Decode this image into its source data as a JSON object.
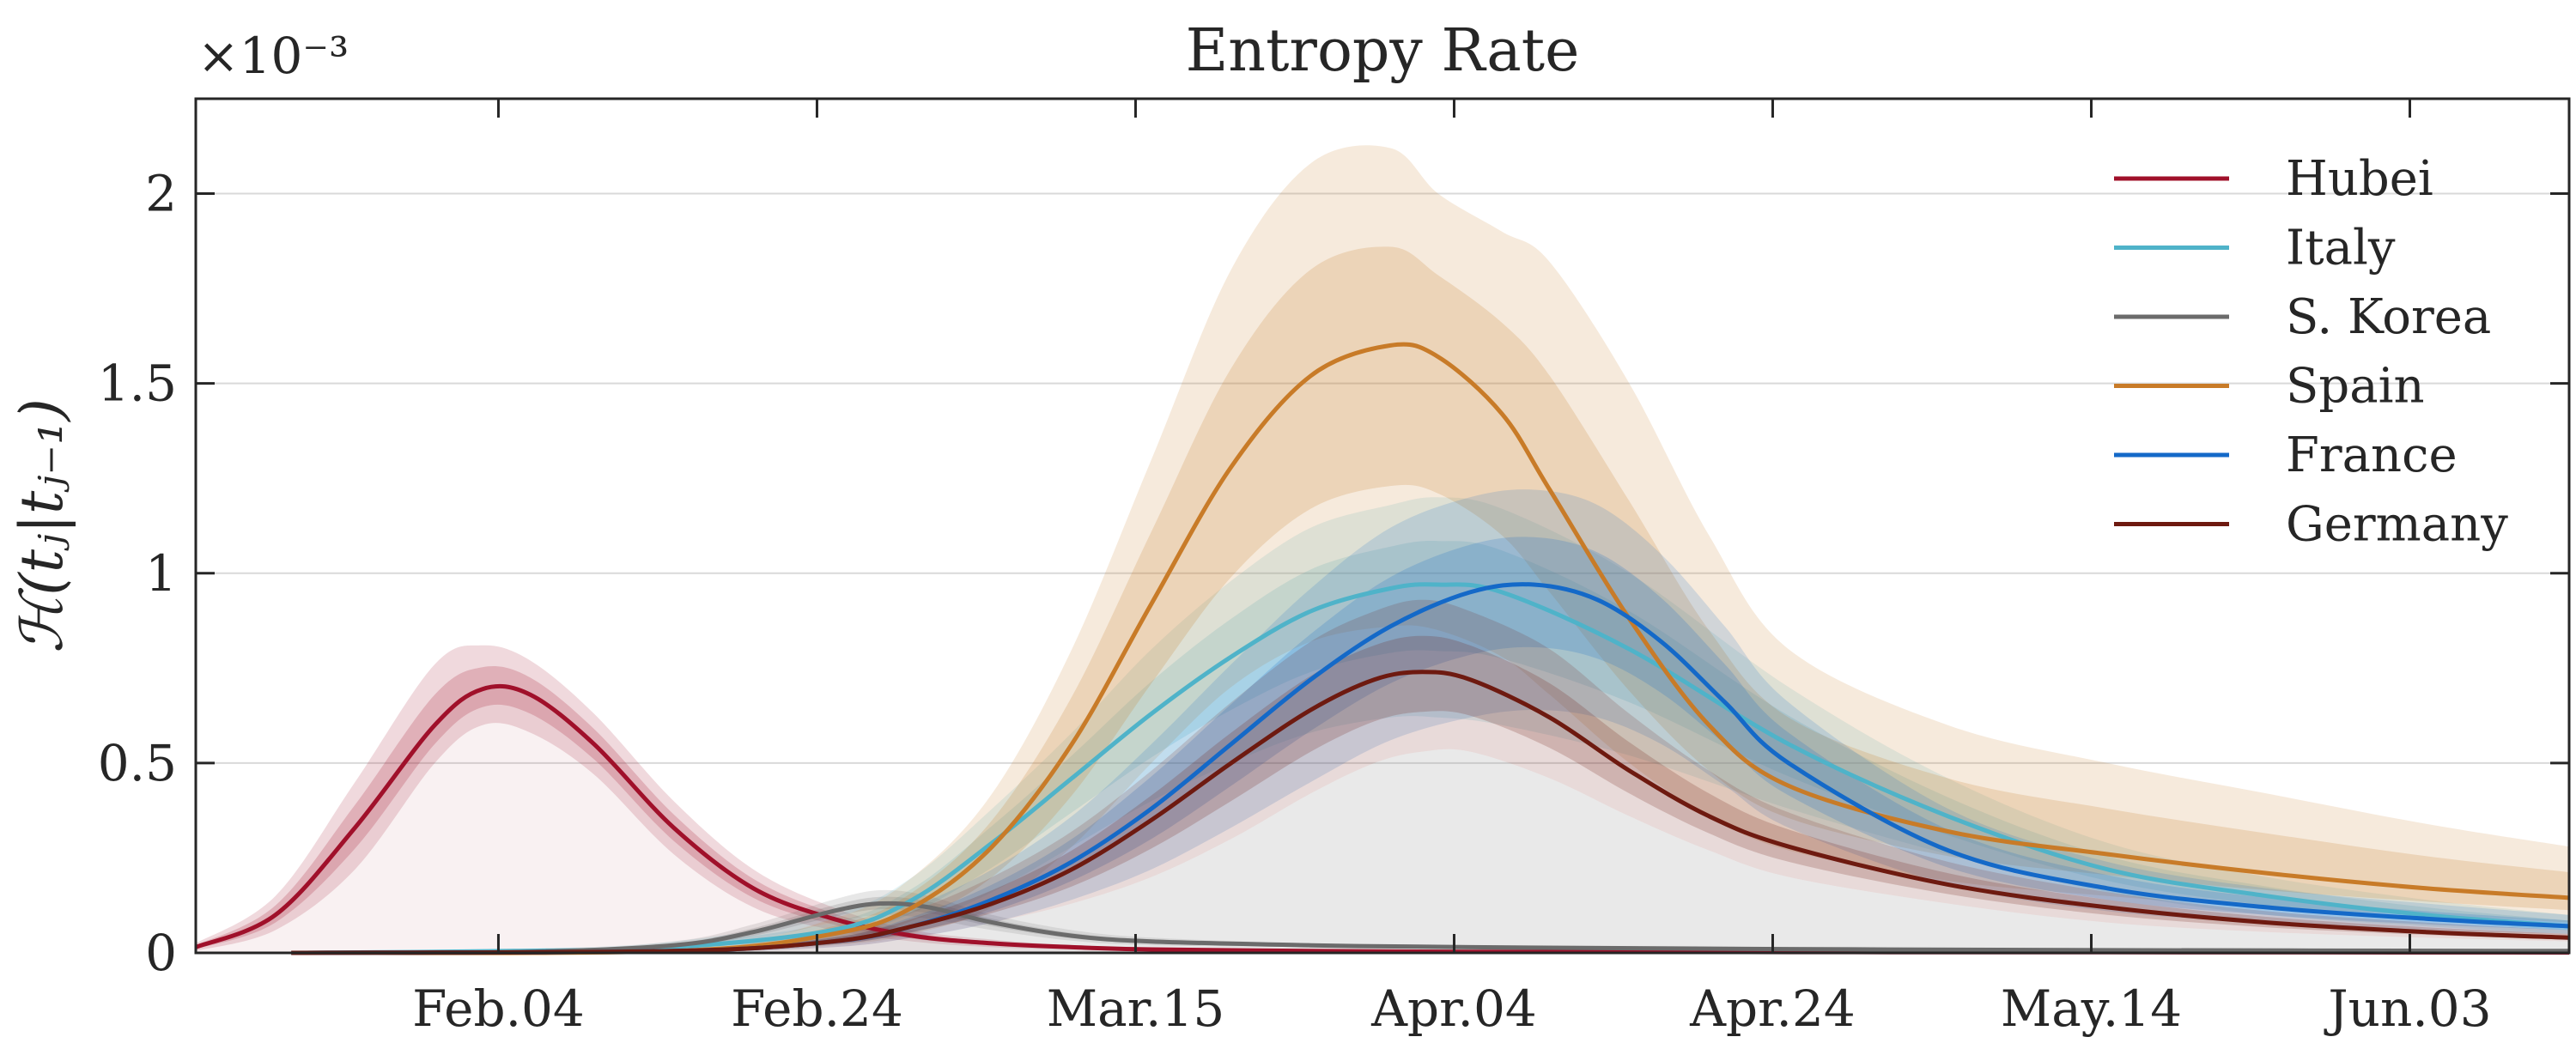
{
  "chart_data": {
    "type": "area",
    "title": "Entropy Rate",
    "xlabel": "",
    "ylabel": "ℋ(tⱼ|tⱼ₋₁)",
    "y_exponent_label": "×10⁻³",
    "ylim": [
      0,
      2.25
    ],
    "yticks": [
      0,
      0.5,
      1,
      1.5,
      2
    ],
    "ytick_labels": [
      "0",
      "0.5",
      "1",
      "1.5",
      "2"
    ],
    "xlim": [
      0,
      149
    ],
    "x_unit": "days since Jan.16",
    "xticks": [
      19,
      39,
      59,
      79,
      99,
      119,
      139
    ],
    "xtick_labels": [
      "Feb.04",
      "Feb.24",
      "Mar.15",
      "Apr.04",
      "Apr.24",
      "May.14",
      "Jun.03"
    ],
    "grid": "horizontal",
    "legend_location": "top-right",
    "series": [
      {
        "name": "Hubei",
        "color": "#a0102a",
        "x": [
          0,
          5,
          10,
          15,
          18,
          21,
          25,
          30,
          35,
          40,
          45,
          50,
          55,
          60,
          70,
          80,
          100,
          120,
          149
        ],
        "values": [
          0.015,
          0.1,
          0.33,
          0.6,
          0.695,
          0.68,
          0.55,
          0.33,
          0.17,
          0.09,
          0.045,
          0.025,
          0.015,
          0.009,
          0.005,
          0.003,
          0.002,
          0.0015,
          0.001
        ],
        "band_upper": [
          0.025,
          0.15,
          0.45,
          0.76,
          0.81,
          0.77,
          0.63,
          0.4,
          0.22,
          0.12,
          0.06,
          0.035,
          0.02,
          0.012,
          0.007,
          0.004,
          0.003,
          0.002,
          0.0015
        ],
        "band_lower": [
          0.005,
          0.06,
          0.22,
          0.5,
          0.6,
          0.58,
          0.47,
          0.26,
          0.12,
          0.06,
          0.03,
          0.015,
          0.009,
          0.006,
          0.003,
          0.002,
          0.001,
          0.001,
          0.0005
        ]
      },
      {
        "name": "Italy",
        "color": "#4fb3c9",
        "x": [
          6,
          20,
          30,
          40,
          45,
          50,
          55,
          60,
          65,
          70,
          75,
          78,
          82,
          90,
          100,
          110,
          120,
          130,
          140,
          149
        ],
        "values": [
          0,
          0.005,
          0.015,
          0.06,
          0.14,
          0.29,
          0.46,
          0.63,
          0.78,
          0.9,
          0.96,
          0.97,
          0.95,
          0.8,
          0.55,
          0.36,
          0.22,
          0.15,
          0.1,
          0.07
        ],
        "band_upper": [
          0,
          0.01,
          0.03,
          0.1,
          0.2,
          0.38,
          0.58,
          0.8,
          0.98,
          1.12,
          1.18,
          1.2,
          1.17,
          1.0,
          0.7,
          0.46,
          0.29,
          0.2,
          0.14,
          0.1
        ],
        "band_lower": [
          0,
          0.002,
          0.006,
          0.03,
          0.07,
          0.16,
          0.28,
          0.4,
          0.5,
          0.58,
          0.62,
          0.62,
          0.6,
          0.52,
          0.38,
          0.26,
          0.16,
          0.1,
          0.07,
          0.05
        ]
      },
      {
        "name": "S. Korea",
        "color": "#6b6b6b",
        "x": [
          6,
          20,
          30,
          35,
          40,
          43,
          46,
          50,
          55,
          60,
          70,
          80,
          100,
          120,
          149
        ],
        "values": [
          0,
          0.002,
          0.02,
          0.055,
          0.11,
          0.13,
          0.12,
          0.08,
          0.045,
          0.03,
          0.02,
          0.015,
          0.01,
          0.007,
          0.005
        ],
        "band_upper": [
          0,
          0.004,
          0.03,
          0.075,
          0.14,
          0.165,
          0.15,
          0.1,
          0.06,
          0.04,
          0.025,
          0.02,
          0.013,
          0.009,
          0.007
        ],
        "band_lower": [
          0,
          0.001,
          0.012,
          0.035,
          0.08,
          0.1,
          0.09,
          0.06,
          0.032,
          0.02,
          0.015,
          0.01,
          0.007,
          0.005,
          0.003
        ]
      },
      {
        "name": "Spain",
        "color": "#c87b28",
        "x": [
          6,
          30,
          40,
          45,
          50,
          55,
          60,
          65,
          70,
          75,
          78,
          82,
          85,
          90,
          95,
          100,
          110,
          120,
          130,
          140,
          149
        ],
        "values": [
          0,
          0.005,
          0.05,
          0.12,
          0.28,
          0.55,
          0.92,
          1.28,
          1.52,
          1.6,
          1.57,
          1.42,
          1.22,
          0.88,
          0.6,
          0.44,
          0.32,
          0.26,
          0.21,
          0.17,
          0.145
        ],
        "band_upper": [
          0,
          0.01,
          0.09,
          0.2,
          0.42,
          0.8,
          1.3,
          1.8,
          2.08,
          2.12,
          2.0,
          1.9,
          1.82,
          1.5,
          1.1,
          0.8,
          0.6,
          0.5,
          0.42,
          0.34,
          0.28
        ],
        "band_lower": [
          0,
          0.002,
          0.02,
          0.05,
          0.12,
          0.28,
          0.5,
          0.7,
          0.82,
          0.86,
          0.85,
          0.78,
          0.68,
          0.5,
          0.36,
          0.27,
          0.19,
          0.15,
          0.12,
          0.1,
          0.08
        ]
      },
      {
        "name": "France",
        "color": "#1469c8",
        "x": [
          6,
          30,
          40,
          45,
          50,
          55,
          60,
          65,
          70,
          75,
          80,
          84,
          88,
          92,
          96,
          100,
          110,
          120,
          130,
          140,
          149
        ],
        "values": [
          0,
          0.005,
          0.03,
          0.07,
          0.14,
          0.24,
          0.38,
          0.55,
          0.72,
          0.86,
          0.95,
          0.97,
          0.93,
          0.82,
          0.66,
          0.5,
          0.27,
          0.17,
          0.12,
          0.09,
          0.07
        ],
        "band_upper": [
          0,
          0.01,
          0.05,
          0.12,
          0.22,
          0.36,
          0.55,
          0.76,
          0.96,
          1.12,
          1.2,
          1.22,
          1.18,
          1.05,
          0.86,
          0.66,
          0.38,
          0.24,
          0.17,
          0.13,
          0.1
        ],
        "band_lower": [
          0,
          0.002,
          0.015,
          0.04,
          0.08,
          0.14,
          0.22,
          0.33,
          0.45,
          0.56,
          0.62,
          0.64,
          0.62,
          0.55,
          0.44,
          0.33,
          0.18,
          0.11,
          0.08,
          0.06,
          0.05
        ]
      },
      {
        "name": "Germany",
        "color": "#6e1a10",
        "x": [
          6,
          30,
          40,
          45,
          50,
          55,
          60,
          65,
          70,
          74,
          77,
          80,
          85,
          90,
          95,
          100,
          110,
          120,
          130,
          140,
          149
        ],
        "values": [
          0,
          0.005,
          0.03,
          0.07,
          0.13,
          0.22,
          0.35,
          0.5,
          0.64,
          0.72,
          0.74,
          0.72,
          0.62,
          0.48,
          0.36,
          0.28,
          0.18,
          0.12,
          0.08,
          0.055,
          0.04
        ],
        "band_upper": [
          0,
          0.01,
          0.05,
          0.11,
          0.2,
          0.32,
          0.48,
          0.66,
          0.82,
          0.9,
          0.93,
          0.9,
          0.8,
          0.63,
          0.48,
          0.37,
          0.24,
          0.16,
          0.11,
          0.08,
          0.06
        ],
        "band_lower": [
          0,
          0.002,
          0.015,
          0.04,
          0.08,
          0.13,
          0.2,
          0.3,
          0.42,
          0.5,
          0.53,
          0.53,
          0.46,
          0.36,
          0.27,
          0.2,
          0.13,
          0.08,
          0.055,
          0.04,
          0.03
        ]
      }
    ]
  }
}
